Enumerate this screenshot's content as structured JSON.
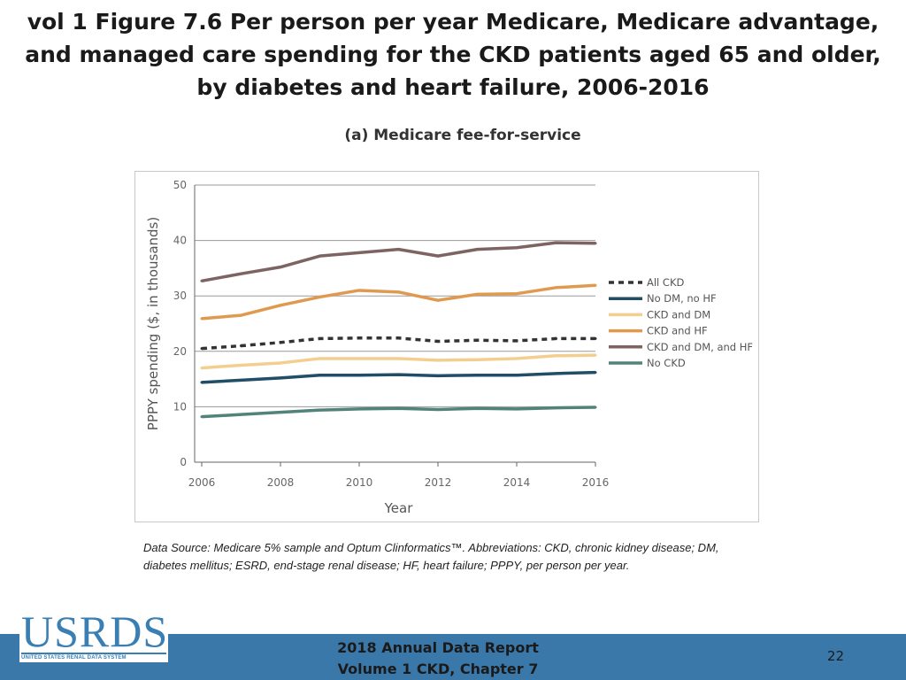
{
  "slide": {
    "title": "vol 1 Figure 7.6 Per person per year Medicare, Medicare advantage, and managed care spending for the CKD patients aged 65 and older, by diabetes and heart failure, 2006-2016",
    "data_source": "Data Source: Medicare 5% sample and Optum Clinformatics™. Abbreviations: CKD, chronic kidney disease; DM, diabetes mellitus; ESRD, end-stage renal disease; HF, heart failure; PPPY, per person per year.",
    "footer_line1": "2018 Annual Data Report",
    "footer_line2": "Volume 1 CKD, Chapter 7",
    "page_number": "22",
    "logo_text": "USRDS",
    "logo_subtext": "UNITED STATES RENAL DATA SYSTEM"
  },
  "colors": {
    "footer": "#3b78aa",
    "logo": "#3a7fb3"
  },
  "chart_data": {
    "type": "line",
    "title": "(a) Medicare fee-for-service",
    "xlabel": "Year",
    "ylabel": "PPPY spending ($, in thousands)",
    "x": [
      2006,
      2007,
      2008,
      2009,
      2010,
      2011,
      2012,
      2013,
      2014,
      2015,
      2016
    ],
    "xticks": [
      "2006",
      "2008",
      "2010",
      "2012",
      "2014",
      "2016"
    ],
    "yticks": [
      "0",
      "10",
      "20",
      "30",
      "40",
      "50"
    ],
    "ylim": [
      0,
      50
    ],
    "grid": true,
    "legend_position": "right",
    "series": [
      {
        "name": "All CKD",
        "color": "#333333",
        "dash": true,
        "values": [
          20.5,
          21.0,
          21.6,
          22.3,
          22.4,
          22.4,
          21.8,
          22.0,
          21.9,
          22.3,
          22.3
        ]
      },
      {
        "name": "No DM, no HF",
        "color": "#1f4e66",
        "dash": false,
        "values": [
          14.4,
          14.8,
          15.2,
          15.7,
          15.7,
          15.8,
          15.6,
          15.7,
          15.7,
          16.0,
          16.2
        ]
      },
      {
        "name": "CKD and DM",
        "color": "#f3cf8f",
        "dash": false,
        "values": [
          17.0,
          17.5,
          17.9,
          18.7,
          18.7,
          18.7,
          18.4,
          18.5,
          18.7,
          19.2,
          19.3
        ]
      },
      {
        "name": "CKD and HF",
        "color": "#e09a4f",
        "dash": false,
        "values": [
          25.9,
          26.5,
          28.3,
          29.8,
          31.0,
          30.7,
          29.2,
          30.3,
          30.4,
          31.5,
          31.9
        ]
      },
      {
        "name": "CKD and DM, and HF",
        "color": "#7d6462",
        "dash": false,
        "values": [
          32.7,
          34.0,
          35.2,
          37.2,
          37.8,
          38.4,
          37.2,
          38.4,
          38.7,
          39.6,
          39.5
        ]
      },
      {
        "name": "No CKD",
        "color": "#52837a",
        "dash": false,
        "values": [
          8.2,
          8.6,
          9.0,
          9.4,
          9.6,
          9.7,
          9.5,
          9.7,
          9.6,
          9.8,
          9.9
        ]
      }
    ]
  }
}
